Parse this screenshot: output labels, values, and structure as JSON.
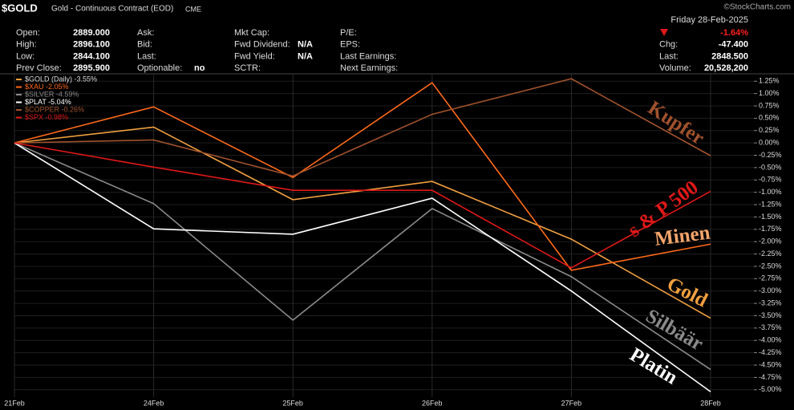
{
  "header": {
    "symbol": "$GOLD",
    "name": "Gold - Continuous Contract (EOD)",
    "exchange": "CME",
    "watermark": "©StockCharts.com",
    "date": "Friday  28-Feb-2025",
    "columns": [
      [
        {
          "label": "Open:",
          "value": "2889.000"
        },
        {
          "label": "High:",
          "value": "2896.100"
        },
        {
          "label": "Low:",
          "value": "2844.100"
        },
        {
          "label": "Prev Close:",
          "value": "2895.900"
        }
      ],
      [
        {
          "label": "Ask:"
        },
        {
          "label": "Bid:"
        },
        {
          "label": "Last:"
        },
        {
          "label": "Optionable:",
          "value": "no"
        }
      ],
      [
        {
          "label": "Mkt Cap:"
        },
        {
          "label": "Fwd Dividend:",
          "value": "N/A"
        },
        {
          "label": "Fwd Yield:",
          "value": "N/A"
        },
        {
          "label": "SCTR:"
        }
      ],
      [
        {
          "label": "P/E:"
        },
        {
          "label": "EPS:"
        },
        {
          "label": "Last Earnings:"
        },
        {
          "label": "Next Earnings:"
        }
      ],
      [
        {
          "value": "-1.64%"
        },
        {
          "label": "Chg:",
          "value": "-47.400"
        },
        {
          "label": "Last:",
          "value": "2848.500"
        },
        {
          "label": "Volume:",
          "value": "20,528,200"
        }
      ]
    ]
  },
  "chart_data": {
    "type": "line",
    "categories": [
      "21Feb",
      "24Feb",
      "25Feb",
      "26Feb",
      "27Feb",
      "28Feb"
    ],
    "series": [
      {
        "name": "$GOLD (Daily) -3.55%",
        "color": "#f0a040",
        "values": [
          0,
          0.32,
          -1.15,
          -0.78,
          -1.95,
          -3.55
        ]
      },
      {
        "name": "$XAU -2.05%",
        "color": "#ff6a1a",
        "values": [
          0,
          0.73,
          -0.7,
          1.22,
          -2.58,
          -2.05
        ]
      },
      {
        "name": "$SILVER -4.59%",
        "color": "#8a8a8a",
        "values": [
          0,
          -1.23,
          -3.59,
          -1.33,
          -2.71,
          -4.59
        ]
      },
      {
        "name": "$PLAT -5.04%",
        "color": "#ffffff",
        "values": [
          0,
          -1.74,
          -1.85,
          -1.12,
          -3.0,
          -5.04
        ]
      },
      {
        "name": "$COPPER -0.26%",
        "color": "#a0522d",
        "values": [
          0,
          0.06,
          -0.67,
          0.58,
          1.3,
          -0.26
        ]
      },
      {
        "name": "$SPX -0.98%",
        "color": "#e01818",
        "values": [
          0,
          -0.49,
          -0.96,
          -0.96,
          -2.53,
          -0.98
        ]
      }
    ],
    "ylim": [
      -5.15,
      1.4
    ],
    "yticks": [
      {
        "value": 1.25,
        "label": "1.25%"
      },
      {
        "value": 1.0,
        "label": "1.00%"
      },
      {
        "value": 0.75,
        "label": "0.75%"
      },
      {
        "value": 0.5,
        "label": "0.50%"
      },
      {
        "value": 0.25,
        "label": "0.25%"
      },
      {
        "value": 0,
        "label": "0.00%"
      },
      {
        "value": -0.25,
        "label": "-0.25%"
      },
      {
        "value": -0.5,
        "label": "-0.50%"
      },
      {
        "value": -0.75,
        "label": "-0.75%"
      },
      {
        "value": -1.0,
        "label": "-1.00%"
      },
      {
        "value": -1.25,
        "label": "-1.25%"
      },
      {
        "value": -1.5,
        "label": "-1.50%"
      },
      {
        "value": -1.75,
        "label": "-1.75%"
      },
      {
        "value": -2.0,
        "label": "-2.00%"
      },
      {
        "value": -2.25,
        "label": "-2.25%"
      },
      {
        "value": -2.5,
        "label": "-2.50%"
      },
      {
        "value": -2.75,
        "label": "-2.75%"
      },
      {
        "value": -3.0,
        "label": "-3.00%"
      },
      {
        "value": -3.25,
        "label": "-3.25%"
      },
      {
        "value": -3.5,
        "label": "-3.50%"
      },
      {
        "value": -3.75,
        "label": "-3.75%"
      },
      {
        "value": -4.0,
        "label": "-4.00%"
      },
      {
        "value": -4.25,
        "label": "-4.25%"
      },
      {
        "value": -4.5,
        "label": "-4.50%"
      },
      {
        "value": -4.75,
        "label": "-4.75%"
      },
      {
        "value": -5.0,
        "label": "-5.00%"
      }
    ],
    "grid": true,
    "annotations": [
      {
        "text": "Kupfer",
        "color": "#a0522d"
      },
      {
        "text": "s & P 500",
        "color": "#e01818"
      },
      {
        "text": "Minen",
        "color": "#f4a46a"
      },
      {
        "text": "Gold",
        "color": "#f0a040"
      },
      {
        "text": "Silbäär",
        "color": "#8a8a8a"
      },
      {
        "text": "Platin",
        "color": "#ffffff"
      }
    ]
  }
}
